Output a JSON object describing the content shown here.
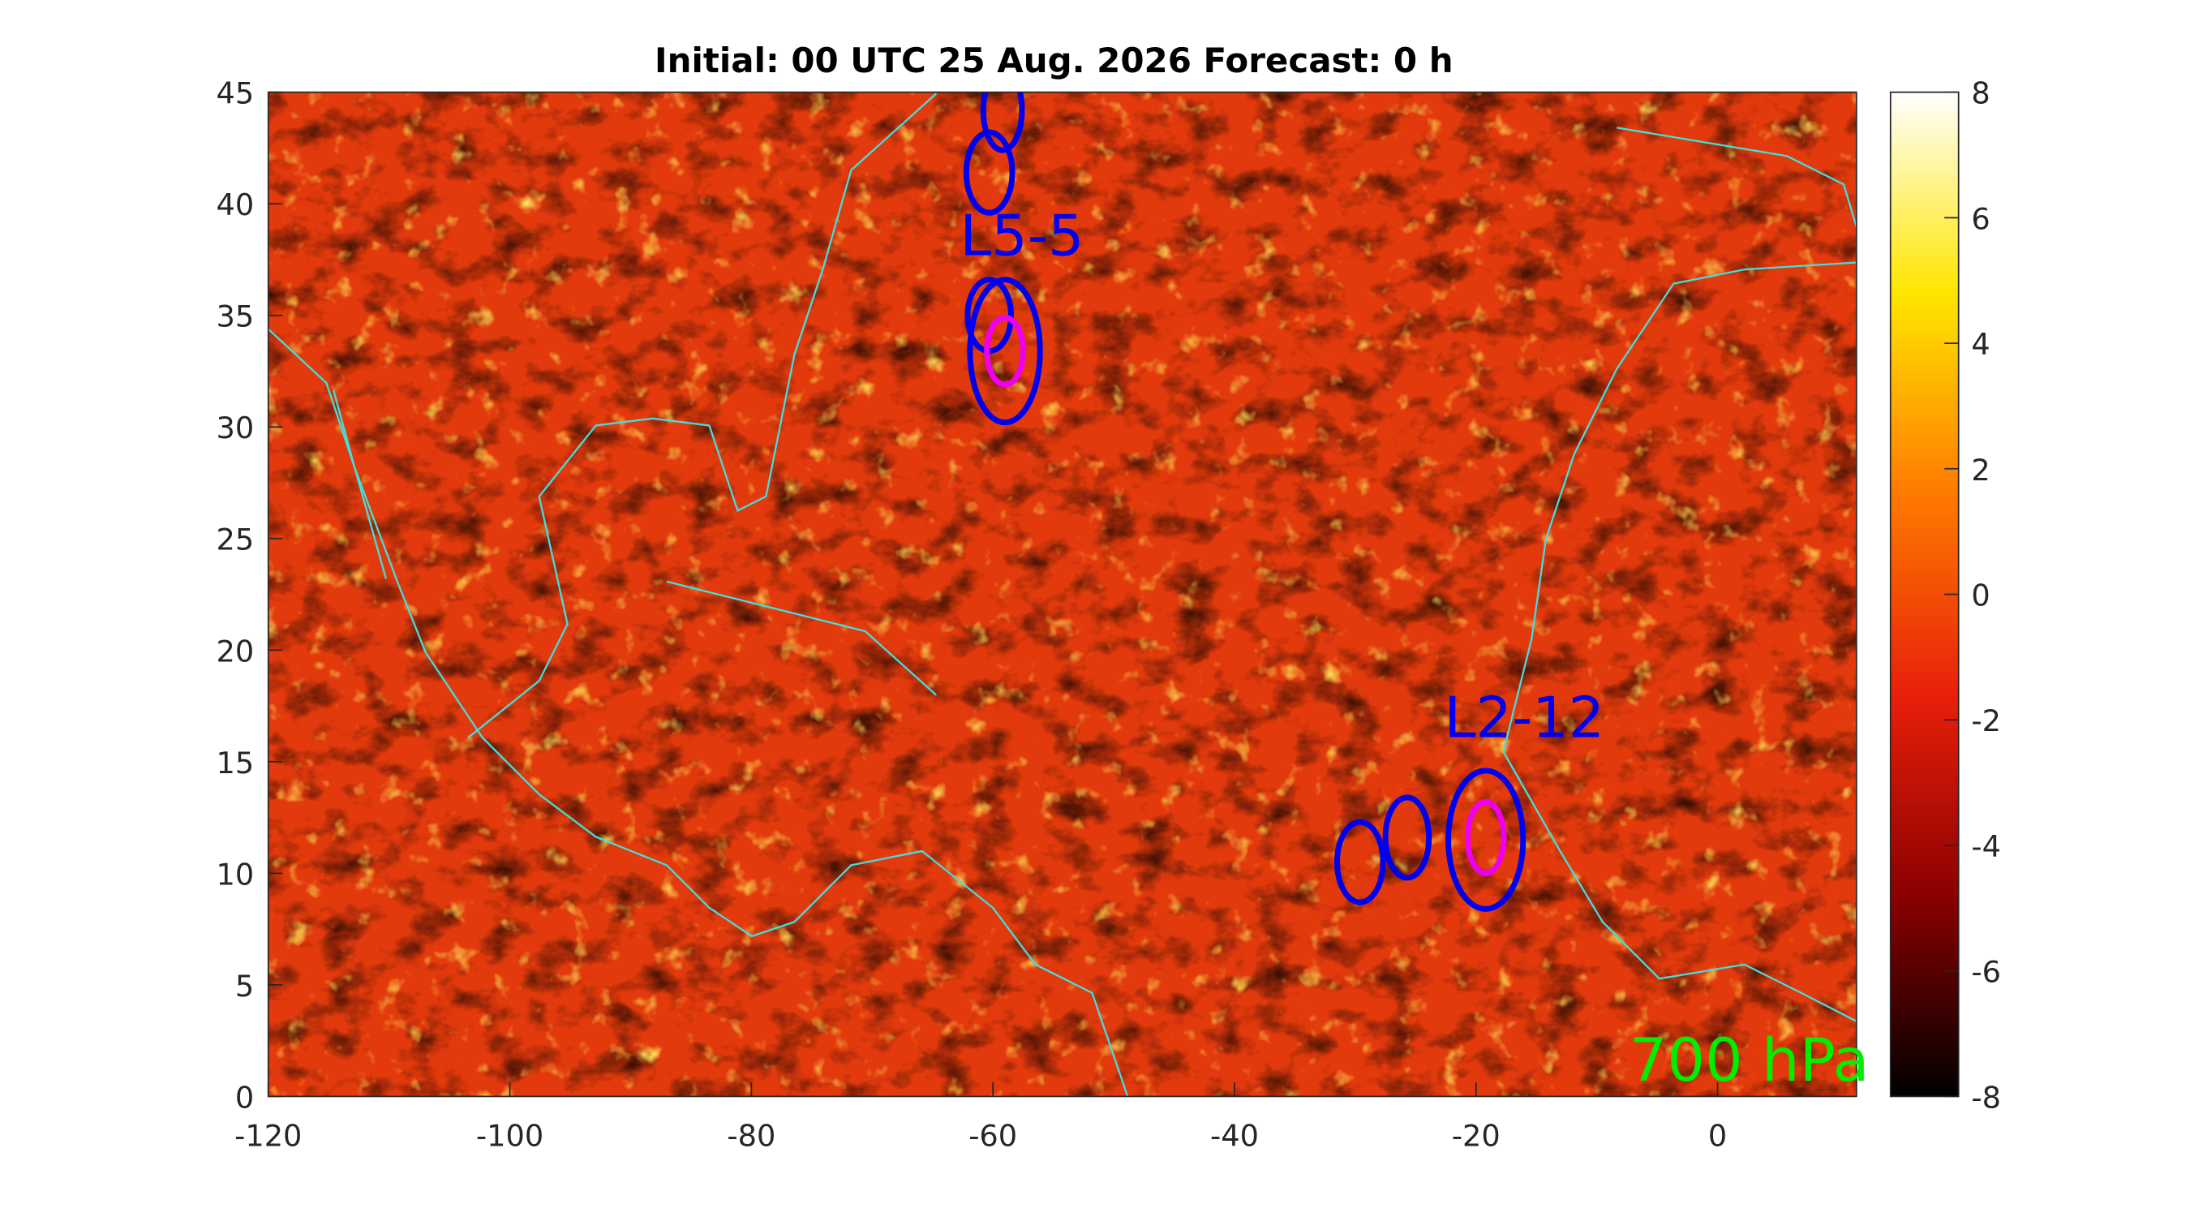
{
  "chart_data": {
    "type": "map",
    "title": "Initial: 00 UTC 25 Aug. 2026 Forecast: 0 h",
    "xlim": [
      -120,
      11.5
    ],
    "xticks": [
      -120,
      -100,
      -80,
      -60,
      -40,
      -20,
      0
    ],
    "ylim": [
      0,
      45
    ],
    "yticks": [
      0,
      5,
      10,
      15,
      20,
      25,
      30,
      35,
      40,
      45
    ],
    "colorbar": {
      "lim": [
        -8,
        8
      ],
      "ticks": [
        -8,
        -6,
        -4,
        -2,
        0,
        2,
        4,
        6,
        8
      ],
      "colors": [
        "#000000",
        "#8b0000",
        "#e8200a",
        "#ff7a00",
        "#ffe600",
        "#ffffff"
      ]
    },
    "coastline_color": "#40e0e0",
    "ellipses": [
      {
        "x": -59.2,
        "y": 44.2,
        "rx": 1.6,
        "ry": 1.8,
        "color": "#0000ee"
      },
      {
        "x": -60.3,
        "y": 41.4,
        "rx": 1.9,
        "ry": 1.8,
        "color": "#0000ee"
      },
      {
        "x": -60.3,
        "y": 35.0,
        "rx": 1.8,
        "ry": 1.6,
        "color": "#0000ee"
      },
      {
        "x": -59.0,
        "y": 33.4,
        "rx": 2.9,
        "ry": 3.2,
        "color": "#0000ee"
      },
      {
        "x": -59.0,
        "y": 33.4,
        "rx": 1.5,
        "ry": 1.5,
        "color": "#ee00ee"
      },
      {
        "x": -29.6,
        "y": 10.5,
        "rx": 1.9,
        "ry": 1.8,
        "color": "#0000ee"
      },
      {
        "x": -25.7,
        "y": 11.6,
        "rx": 1.8,
        "ry": 1.8,
        "color": "#0000ee"
      },
      {
        "x": -19.2,
        "y": 11.5,
        "rx": 3.1,
        "ry": 3.1,
        "color": "#0000ee"
      },
      {
        "x": -19.2,
        "y": 11.6,
        "rx": 1.5,
        "ry": 1.6,
        "color": "#ee00ee"
      }
    ],
    "labels": [
      {
        "text": "L5-5",
        "x": -57.6,
        "y": 37.7,
        "color": "#0000ee"
      },
      {
        "text": "L2-12",
        "x": -16.0,
        "y": 16.1,
        "color": "#0000ee"
      }
    ],
    "annotation": {
      "text": "700 hPa",
      "color": "#00ee00"
    }
  }
}
